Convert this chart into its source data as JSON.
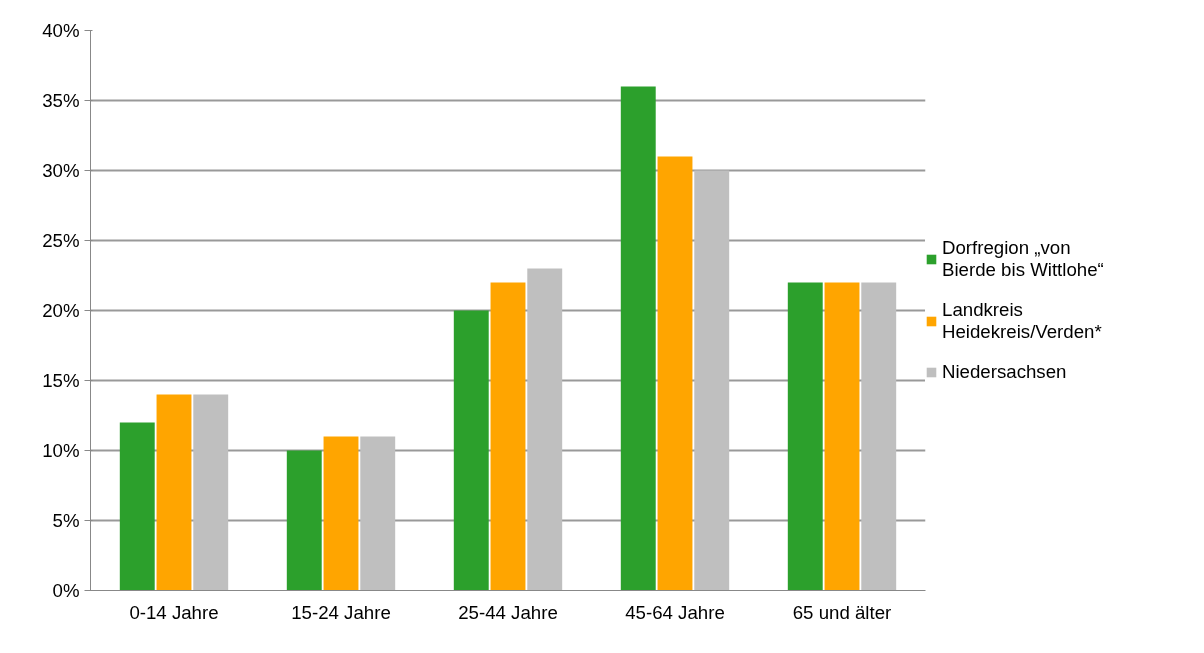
{
  "chart_data": {
    "type": "bar",
    "categories": [
      "0-14 Jahre",
      "15-24 Jahre",
      "25-44 Jahre",
      "45-64 Jahre",
      "65 und älter"
    ],
    "series": [
      {
        "name": "Dorfregion „von Bierde bis Wittlohe“",
        "color": "#2ca02c",
        "values": [
          12,
          10,
          20,
          36,
          22
        ]
      },
      {
        "name": "Landkreis Heidekreis/Verden*",
        "color": "#ffa500",
        "values": [
          14,
          11,
          22,
          31,
          22
        ]
      },
      {
        "name": "Niedersachsen",
        "color": "#bfbfbf",
        "values": [
          14,
          11,
          23,
          30,
          22
        ]
      }
    ],
    "ylim": [
      0,
      40
    ],
    "yticks": [
      {
        "value": 0,
        "label": "0%"
      },
      {
        "value": 5,
        "label": "5%"
      },
      {
        "value": 10,
        "label": "10%"
      },
      {
        "value": 15,
        "label": "15%"
      },
      {
        "value": 20,
        "label": "20%"
      },
      {
        "value": 25,
        "label": "25%"
      },
      {
        "value": 30,
        "label": "30%"
      },
      {
        "value": 35,
        "label": "35%"
      },
      {
        "value": 40,
        "label": "40%"
      }
    ],
    "grid": "y",
    "legend": "right"
  }
}
